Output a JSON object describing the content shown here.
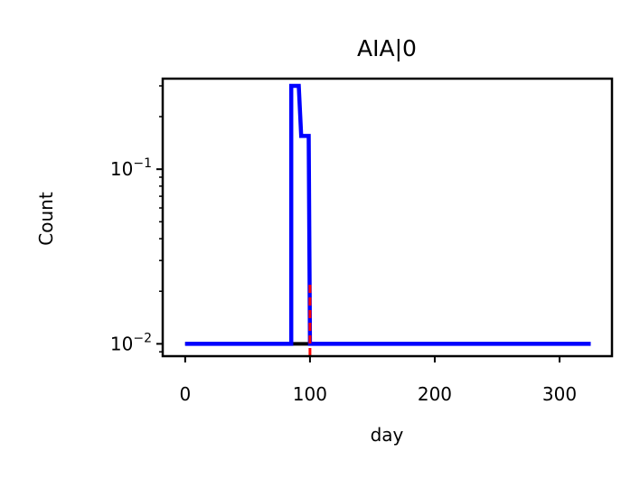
{
  "chart_data": {
    "type": "line",
    "title": "AIA|0",
    "xlabel": "day",
    "ylabel": "Count",
    "xlim": [
      -18,
      342
    ],
    "ylim": [
      0.0085,
      0.33
    ],
    "yscale": "log",
    "x_ticks": [
      {
        "value": 0,
        "label": "0"
      },
      {
        "value": 100,
        "label": "100"
      },
      {
        "value": 200,
        "label": "200"
      },
      {
        "value": 300,
        "label": "300"
      }
    ],
    "y_ticks": [
      {
        "value": 0.01,
        "base": "10",
        "exp": "−2"
      },
      {
        "value": 0.1,
        "base": "10",
        "exp": "−1"
      }
    ],
    "grid": false,
    "legend": "none",
    "series": [
      {
        "color": "#000000",
        "style": "solid",
        "x": [
          0,
          84,
          99,
          325
        ],
        "y": [
          0.01,
          0.01,
          0.01,
          0.01
        ]
      },
      {
        "color": "#0000ff",
        "style": "solid",
        "x": [
          0,
          85,
          85,
          91,
          93,
          97,
          99,
          100,
          325
        ],
        "y": [
          0.01,
          0.01,
          0.3,
          0.3,
          0.155,
          0.155,
          0.155,
          0.01,
          0.01
        ]
      }
    ],
    "vlines": [
      {
        "x": 100,
        "y_from": 0.0085,
        "y_to": 0.023,
        "color": "#ff0000",
        "style": "dashed"
      }
    ]
  }
}
